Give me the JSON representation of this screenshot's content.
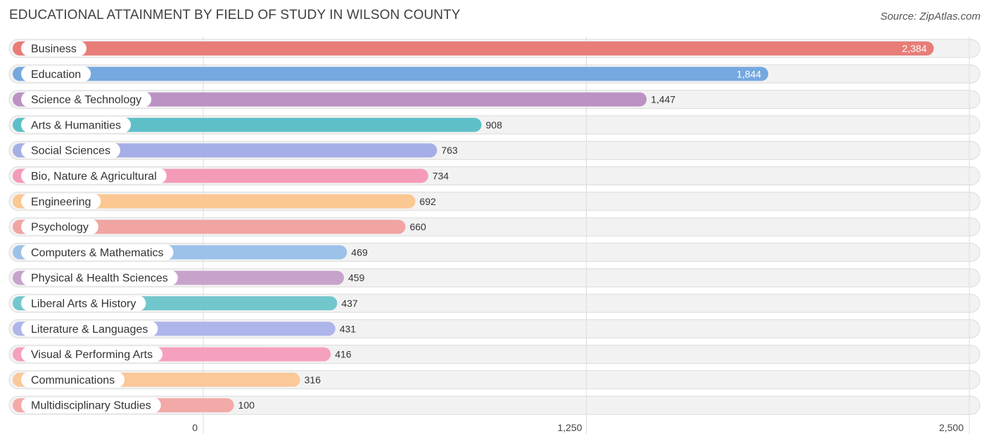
{
  "chart_data": {
    "type": "bar",
    "orientation": "horizontal",
    "title": "EDUCATIONAL ATTAINMENT BY FIELD OF STUDY IN WILSON COUNTY",
    "source": "Source: ZipAtlas.com",
    "categories": [
      "Business",
      "Education",
      "Science & Technology",
      "Arts & Humanities",
      "Social Sciences",
      "Bio, Nature & Agricultural",
      "Engineering",
      "Psychology",
      "Computers & Mathematics",
      "Physical & Health Sciences",
      "Liberal Arts & History",
      "Literature & Languages",
      "Visual & Performing Arts",
      "Communications",
      "Multidisciplinary Studies"
    ],
    "values": [
      2384,
      1844,
      1447,
      908,
      763,
      734,
      692,
      660,
      469,
      459,
      437,
      431,
      416,
      316,
      100
    ],
    "value_labels": [
      "2,384",
      "1,844",
      "1,447",
      "908",
      "763",
      "734",
      "692",
      "660",
      "469",
      "459",
      "437",
      "431",
      "416",
      "316",
      "100"
    ],
    "colors": [
      "#e87d78",
      "#74a8df",
      "#bb92c4",
      "#5fbfc8",
      "#a5aee6",
      "#f49bb7",
      "#fbc792",
      "#f0a5a3",
      "#9cc2ea",
      "#c7a3cc",
      "#72c7cd",
      "#adb5ea",
      "#f6a0bf",
      "#fbc899",
      "#f3a9a7"
    ],
    "xlim": [
      0,
      2500
    ],
    "xticks": [
      0,
      1250,
      2500
    ],
    "xtick_labels": [
      "0",
      "1,250",
      "2,500"
    ],
    "xlabel": "",
    "ylabel": "",
    "grid": true,
    "legend": "none"
  }
}
